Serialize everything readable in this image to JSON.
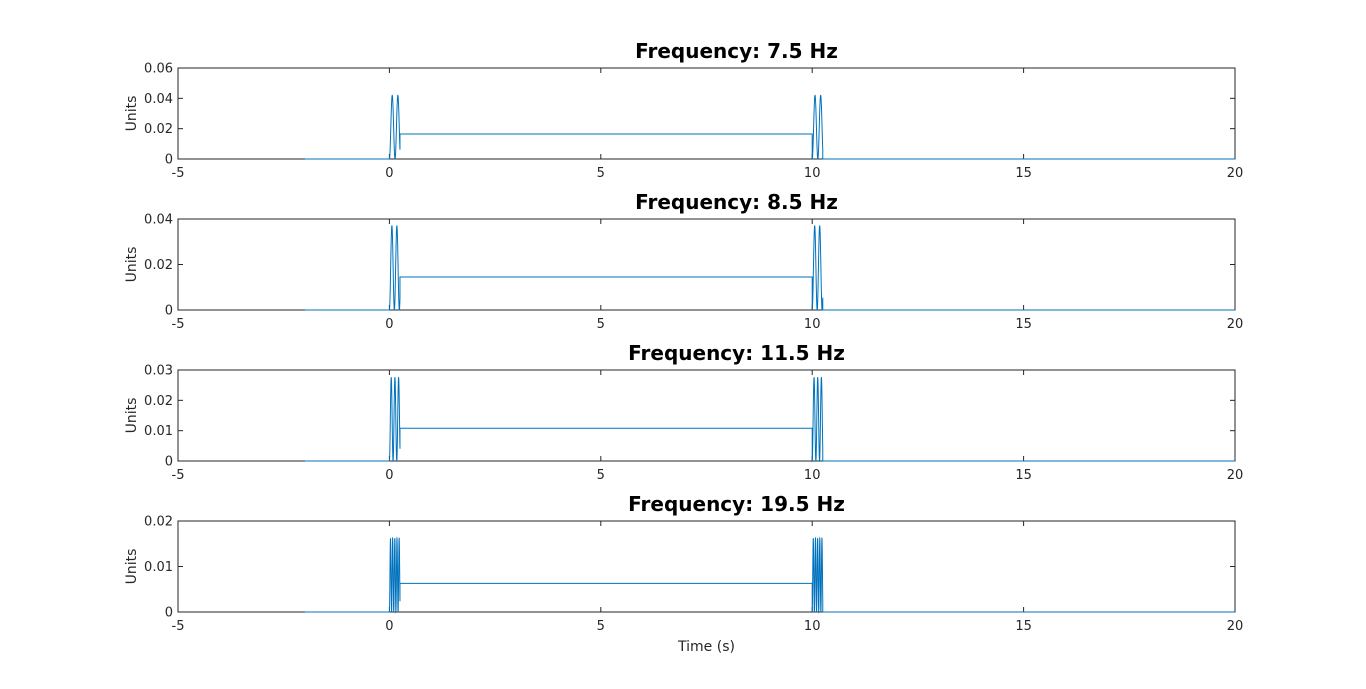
{
  "chart_data": [
    {
      "type": "line",
      "title": "Frequency: 7.5 Hz",
      "xlabel": "",
      "ylabel": "Units",
      "xlim": [
        -5,
        20
      ],
      "ylim": [
        0,
        0.06
      ],
      "xticks": [
        "-5",
        "0",
        "5",
        "10",
        "15",
        "20"
      ],
      "yticks": [
        "0",
        "0.02",
        "0.04",
        "0.06"
      ],
      "grid": false,
      "series": [
        {
          "color": "#0072BD",
          "frequency_hz": 7.5,
          "peak": 0.042,
          "plateau": 0.0165,
          "x": [
            -2,
            0,
            10,
            10.25,
            20
          ],
          "y": [
            0,
            0,
            0.0165,
            0,
            0
          ]
        }
      ]
    },
    {
      "type": "line",
      "title": "Frequency: 8.5 Hz",
      "xlabel": "",
      "ylabel": "Units",
      "xlim": [
        -5,
        20
      ],
      "ylim": [
        0,
        0.04
      ],
      "xticks": [
        "-5",
        "0",
        "5",
        "10",
        "15",
        "20"
      ],
      "yticks": [
        "0",
        "0.02",
        "0.04"
      ],
      "grid": false,
      "series": [
        {
          "color": "#0072BD",
          "frequency_hz": 8.5,
          "peak": 0.037,
          "plateau": 0.0145,
          "x": [
            -2,
            0,
            10,
            10.25,
            20
          ],
          "y": [
            0,
            0,
            0.0145,
            0,
            0
          ]
        }
      ]
    },
    {
      "type": "line",
      "title": "Frequency: 11.5 Hz",
      "xlabel": "",
      "ylabel": "Units",
      "xlim": [
        -5,
        20
      ],
      "ylim": [
        0,
        0.03
      ],
      "xticks": [
        "-5",
        "0",
        "5",
        "10",
        "15",
        "20"
      ],
      "yticks": [
        "0",
        "0.01",
        "0.02",
        "0.03"
      ],
      "grid": false,
      "series": [
        {
          "color": "#0072BD",
          "frequency_hz": 11.5,
          "peak": 0.0275,
          "plateau": 0.0108,
          "x": [
            -2,
            0,
            10,
            10.25,
            20
          ],
          "y": [
            0,
            0,
            0.0108,
            0,
            0
          ]
        }
      ]
    },
    {
      "type": "line",
      "title": "Frequency: 19.5 Hz",
      "xlabel": "Time (s)",
      "ylabel": "Units",
      "xlim": [
        -5,
        20
      ],
      "ylim": [
        0,
        0.02
      ],
      "xticks": [
        "-5",
        "0",
        "5",
        "10",
        "15",
        "20"
      ],
      "yticks": [
        "0",
        "0.01",
        "0.02"
      ],
      "grid": false,
      "series": [
        {
          "color": "#0072BD",
          "frequency_hz": 19.5,
          "peak": 0.0162,
          "plateau": 0.0063,
          "x": [
            -2,
            0,
            10,
            10.25,
            20
          ],
          "y": [
            0,
            0,
            0.0063,
            0,
            0
          ]
        }
      ]
    }
  ]
}
